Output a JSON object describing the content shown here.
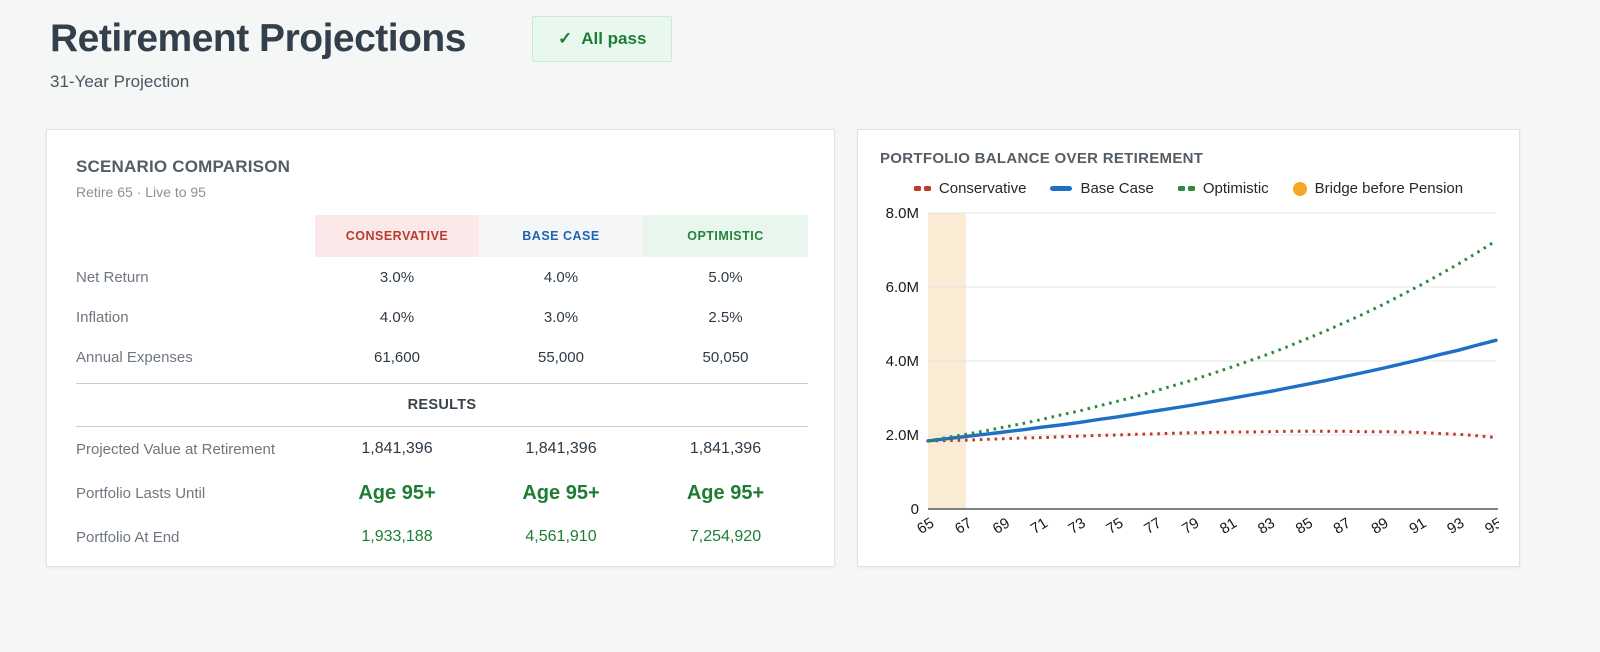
{
  "page": {
    "title": "Retirement Projections",
    "subtitle": "31-Year Projection",
    "badge": {
      "icon": "✓",
      "label": "All pass",
      "text_color": "#1e7d34",
      "bg": "#e9f8ef",
      "border": "#cde9d6"
    }
  },
  "scenario_card": {
    "title": "SCENARIO COMPARISON",
    "subtitle": "Retire 65 · Live to 95",
    "columns": [
      {
        "label": "CONSERVATIVE",
        "color": "#b93b2d",
        "bg": "#fbe9e9"
      },
      {
        "label": "BASE CASE",
        "color": "#1f63b5",
        "bg": "#f4f6f7"
      },
      {
        "label": "OPTIMISTIC",
        "color": "#23843c",
        "bg": "#e8f6ee"
      }
    ],
    "input_rows": [
      {
        "label": "Net Return",
        "values": [
          "3.0%",
          "4.0%",
          "5.0%"
        ]
      },
      {
        "label": "Inflation",
        "values": [
          "4.0%",
          "3.0%",
          "2.5%"
        ]
      },
      {
        "label": "Annual Expenses",
        "values": [
          "61,600",
          "55,000",
          "50,050"
        ]
      }
    ],
    "results_header": "RESULTS",
    "result_rows": [
      {
        "label": "Projected Value at Retirement",
        "style": "dark",
        "values": [
          "1,841,396",
          "1,841,396",
          "1,841,396"
        ]
      },
      {
        "label": "Portfolio Lasts Until",
        "style": "age",
        "values": [
          "Age 95+",
          "Age 95+",
          "Age 95+"
        ]
      },
      {
        "label": "Portfolio At End",
        "style": "green",
        "values": [
          "1,933,188",
          "4,561,910",
          "7,254,920"
        ]
      }
    ]
  },
  "chart_card": {
    "title": "PORTFOLIO BALANCE OVER RETIREMENT",
    "legend": [
      {
        "label": "Conservative",
        "marker": "dashes",
        "color": "#c0392b"
      },
      {
        "label": "Base Case",
        "marker": "line",
        "color": "#1f6fc4"
      },
      {
        "label": "Optimistic",
        "marker": "dashes",
        "color": "#2e8b3d"
      },
      {
        "label": "Bridge before Pension",
        "marker": "circle",
        "color": "#f5a623"
      }
    ]
  },
  "chart_data": {
    "type": "line",
    "title": "PORTFOLIO BALANCE OVER RETIREMENT",
    "unit": "millions of dollars",
    "xlim": [
      65,
      95
    ],
    "ylim": [
      0,
      8
    ],
    "grid": true,
    "legend_position": "top",
    "x": [
      65,
      66,
      67,
      68,
      69,
      70,
      71,
      72,
      73,
      74,
      75,
      76,
      77,
      78,
      79,
      80,
      81,
      82,
      83,
      84,
      85,
      86,
      87,
      88,
      89,
      90,
      91,
      92,
      93,
      94,
      95
    ],
    "xticks": [
      65,
      67,
      69,
      71,
      73,
      75,
      77,
      79,
      81,
      83,
      85,
      87,
      89,
      91,
      93,
      95
    ],
    "yticks": [
      {
        "v": 0,
        "label": "0"
      },
      {
        "v": 2,
        "label": "2.0M"
      },
      {
        "v": 4,
        "label": "4.0M"
      },
      {
        "v": 6,
        "label": "6.0M"
      },
      {
        "v": 8,
        "label": "8.0M"
      }
    ],
    "band": {
      "label": "Bridge before Pension",
      "from": 65,
      "to": 67,
      "fill": "#faecd4",
      "legend_color": "#f5a623"
    },
    "series": [
      {
        "name": "Conservative",
        "color": "#c0392b",
        "line_style": "dotted",
        "values": [
          1.84,
          1.85,
          1.86,
          1.88,
          1.9,
          1.92,
          1.93,
          1.95,
          1.97,
          1.99,
          2.0,
          2.02,
          2.03,
          2.05,
          2.06,
          2.07,
          2.08,
          2.08,
          2.09,
          2.1,
          2.1,
          2.1,
          2.1,
          2.09,
          2.09,
          2.08,
          2.07,
          2.04,
          2.02,
          1.98,
          1.93
        ]
      },
      {
        "name": "Base Case",
        "color": "#1f6fc4",
        "line_style": "solid",
        "values": [
          1.84,
          1.9,
          1.96,
          2.02,
          2.08,
          2.14,
          2.21,
          2.27,
          2.34,
          2.42,
          2.49,
          2.57,
          2.65,
          2.73,
          2.81,
          2.9,
          2.99,
          3.08,
          3.17,
          3.27,
          3.37,
          3.47,
          3.58,
          3.69,
          3.8,
          3.92,
          4.04,
          4.17,
          4.29,
          4.43,
          4.56
        ]
      },
      {
        "name": "Optimistic",
        "color": "#2e8b3d",
        "line_style": "dotted",
        "values": [
          1.84,
          1.93,
          2.02,
          2.11,
          2.21,
          2.31,
          2.42,
          2.54,
          2.65,
          2.78,
          2.91,
          3.04,
          3.19,
          3.34,
          3.49,
          3.66,
          3.83,
          4.01,
          4.19,
          4.39,
          4.6,
          4.81,
          5.04,
          5.27,
          5.52,
          5.78,
          6.05,
          6.33,
          6.62,
          6.93,
          7.25
        ]
      }
    ]
  }
}
